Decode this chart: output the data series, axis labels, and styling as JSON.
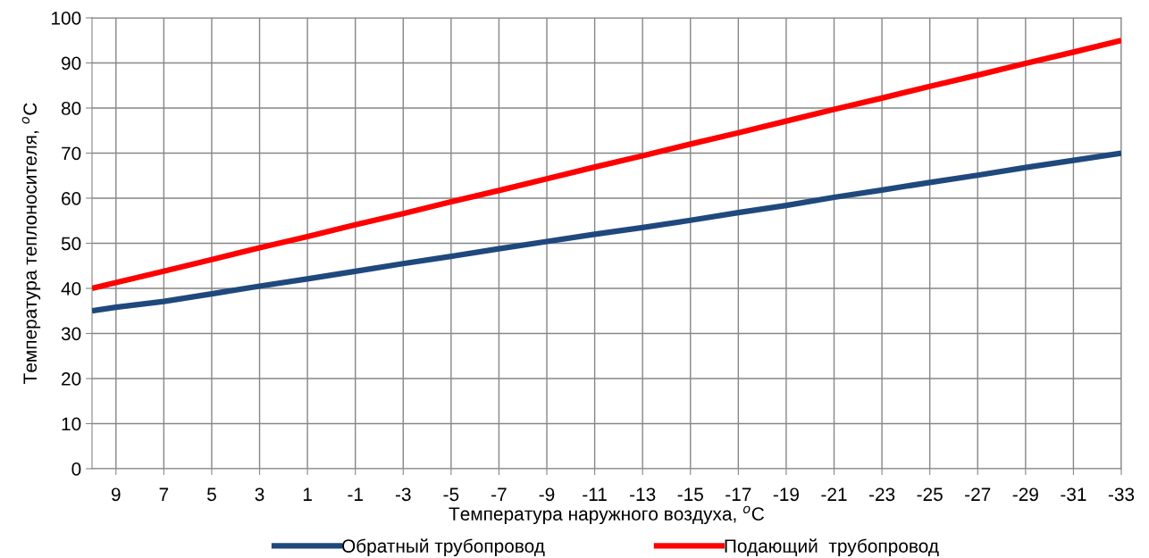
{
  "chart_data": {
    "type": "line",
    "xlabel": "Температура наружного воздуха, $^{o}$C",
    "ylabel": "Температура теплоносителя, $^{o}$C",
    "x": [
      10,
      9,
      7,
      5,
      3,
      1,
      -1,
      -3,
      -5,
      -7,
      -9,
      -11,
      -13,
      -15,
      -17,
      -19,
      -21,
      -23,
      -25,
      -27,
      -29,
      -31,
      -33
    ],
    "series": [
      {
        "name": "Обратный трубопровод",
        "color": "#1f497d",
        "values": [
          35,
          35.8,
          37.1,
          38.8,
          40.5,
          42.1,
          43.8,
          45.5,
          47.1,
          48.8,
          50.4,
          52.0,
          53.5,
          55.1,
          56.8,
          58.4,
          60.2,
          61.8,
          63.5,
          65.1,
          66.8,
          68.4,
          70
        ]
      },
      {
        "name": "Подающий  трубопровод",
        "color": "#ff0000",
        "values": [
          40,
          41.3,
          43.8,
          46.4,
          49.0,
          51.5,
          54.1,
          56.6,
          59.2,
          61.7,
          64.3,
          66.9,
          69.4,
          72.0,
          74.5,
          77.1,
          79.7,
          82.2,
          84.8,
          87.3,
          89.9,
          92.4,
          95
        ]
      }
    ],
    "xlim": [
      10,
      -33
    ],
    "xticks": [
      9,
      7,
      5,
      3,
      1,
      -1,
      -3,
      -5,
      -7,
      -9,
      -11,
      -13,
      -15,
      -17,
      -19,
      -21,
      -23,
      -25,
      -27,
      -29,
      -31,
      -33
    ],
    "ylim": [
      0,
      100
    ],
    "yticks": [
      0,
      10,
      20,
      30,
      40,
      50,
      60,
      70,
      80,
      90,
      100
    ],
    "grid": true,
    "legend": "bottom",
    "marker": "none",
    "line_style": "solid"
  }
}
